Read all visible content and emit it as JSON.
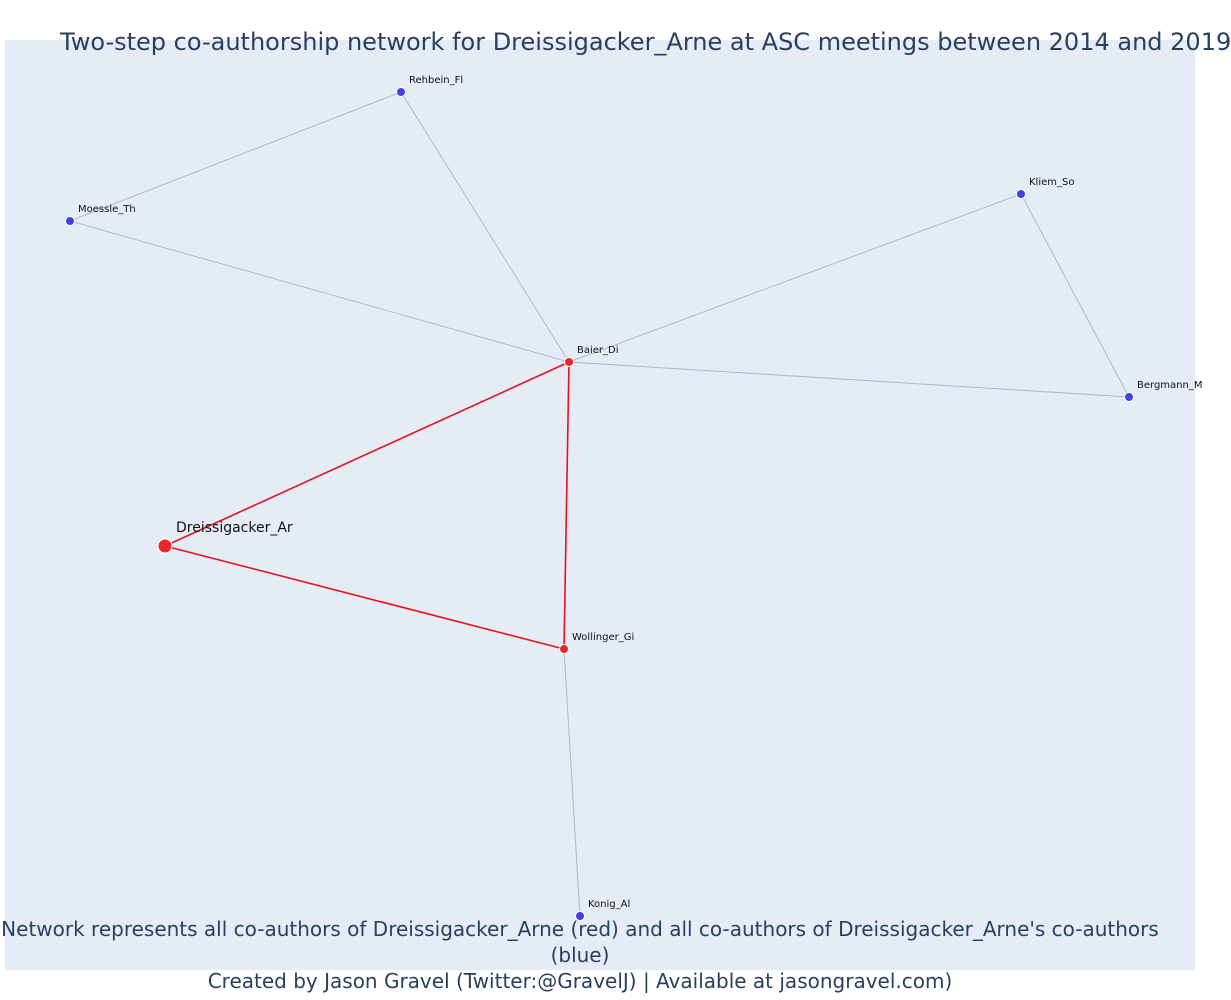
{
  "title": "Two-step co-authorship network for Dreissigacker_Arne at ASC meetings between 2014 and 2019",
  "caption": {
    "line1": "Network represents all co-authors of Dreissigacker_Arne (red) and all co-authors of Dreissigacker_Arne's co-authors (blue)",
    "line2": "Created by Jason Gravel (Twitter:@GravelJ) | Available at jasongravel.com)"
  },
  "colors": {
    "first_step": "#e8262c",
    "second_step": "#3e42e6",
    "edge_first": "#e8121c",
    "edge_second": "#b3b7c6",
    "background": "#e5ecf6"
  },
  "nodes": [
    {
      "id": "Dreissigacker_Ar",
      "label": "Dreissigacker_Ar",
      "group": "focal"
    },
    {
      "id": "Baier_Di",
      "label": "Baier_Di",
      "group": "first"
    },
    {
      "id": "Wollinger_Gi",
      "label": "Wollinger_Gi",
      "group": "first"
    },
    {
      "id": "Rehbein_Fl",
      "label": "Rehbein_Fl",
      "group": "second"
    },
    {
      "id": "Moessle_Th",
      "label": "Moessle_Th",
      "group": "second"
    },
    {
      "id": "Kliem_So",
      "label": "Kliem_So",
      "group": "second"
    },
    {
      "id": "Bergmann_M",
      "label": "Bergmann_M",
      "group": "second"
    },
    {
      "id": "Konig_Al",
      "label": "Konig_Al",
      "group": "second"
    }
  ],
  "edges": [
    {
      "source": "Dreissigacker_Ar",
      "target": "Baier_Di",
      "group": "first"
    },
    {
      "source": "Dreissigacker_Ar",
      "target": "Wollinger_Gi",
      "group": "first"
    },
    {
      "source": "Baier_Di",
      "target": "Wollinger_Gi",
      "group": "first"
    },
    {
      "source": "Baier_Di",
      "target": "Rehbein_Fl",
      "group": "second"
    },
    {
      "source": "Baier_Di",
      "target": "Moessle_Th",
      "group": "second"
    },
    {
      "source": "Baier_Di",
      "target": "Kliem_So",
      "group": "second"
    },
    {
      "source": "Baier_Di",
      "target": "Bergmann_M",
      "group": "second"
    },
    {
      "source": "Rehbein_Fl",
      "target": "Moessle_Th",
      "group": "second"
    },
    {
      "source": "Kliem_So",
      "target": "Bergmann_M",
      "group": "second"
    },
    {
      "source": "Wollinger_Gi",
      "target": "Konig_Al",
      "group": "second"
    }
  ]
}
